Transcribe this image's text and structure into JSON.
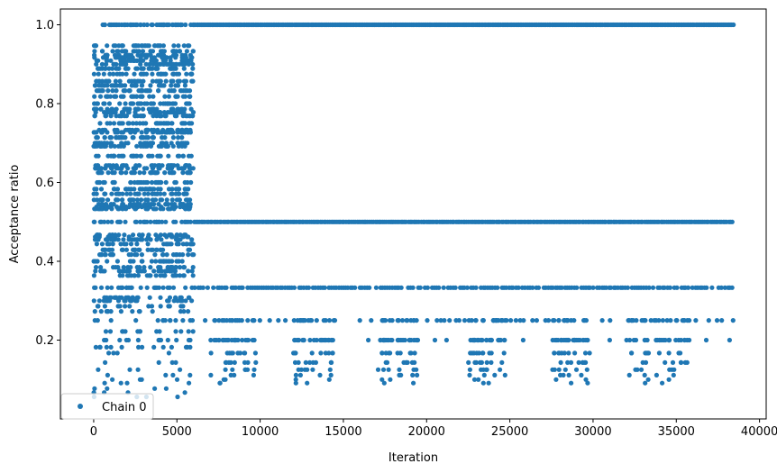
{
  "chart_data": {
    "type": "scatter",
    "xlabel": "Iteration",
    "ylabel": "Acceptance ratio",
    "xlim": [
      -2000,
      40400
    ],
    "ylim": [
      0.0,
      1.04
    ],
    "xticks": [
      0,
      5000,
      10000,
      15000,
      20000,
      25000,
      30000,
      35000,
      40000
    ],
    "xtick_labels": [
      "0",
      "5000",
      "10000",
      "15000",
      "20000",
      "25000",
      "30000",
      "35000",
      "40000"
    ],
    "yticks": [
      0.2,
      0.4,
      0.6,
      0.8,
      1.0
    ],
    "ytick_labels": [
      "0.2",
      "0.4",
      "0.6",
      "0.8",
      "1.0"
    ],
    "grid": false,
    "legend_position": "bottom-left",
    "marker_color": "#1f77b4",
    "series": [
      {
        "name": "Chain 0",
        "phases": [
          {
            "x_range": [
              0,
              6000
            ],
            "y_levels": [
              1.0,
              0.947,
              0.933,
              0.923,
              0.917,
              0.909,
              0.9,
              0.889,
              0.875,
              0.857,
              0.846,
              0.833,
              0.818,
              0.8,
              0.786,
              0.778,
              0.769,
              0.75,
              0.733,
              0.727,
              0.714,
              0.7,
              0.692,
              0.667,
              0.643,
              0.636,
              0.625,
              0.6,
              0.583,
              0.571,
              0.556,
              0.545,
              0.538,
              0.533,
              0.5,
              0.467,
              0.462,
              0.455,
              0.444,
              0.429,
              0.417,
              0.4,
              0.385,
              0.375,
              0.364,
              0.333,
              0.308,
              0.3,
              0.286,
              0.273,
              0.25,
              0.222,
              0.2,
              0.182,
              0.167,
              0.143,
              0.125,
              0.111,
              0.1,
              0.091,
              0.077,
              0.067,
              0.056
            ]
          },
          {
            "x_range": [
              6000,
              38400
            ],
            "y_levels": [
              1.0,
              0.5,
              0.333,
              0.25,
              0.2,
              0.167,
              0.143,
              0.125,
              0.111,
              0.1,
              0.091
            ],
            "sparse_clusters": [
              {
                "x_range": [
                  7000,
                  9800
                ]
              },
              {
                "x_range": [
                  12000,
                  14500
                ]
              },
              {
                "x_range": [
                  17000,
                  19500
                ]
              },
              {
                "x_range": [
                  22500,
                  24800
                ]
              },
              {
                "x_range": [
                  27500,
                  29800
                ]
              },
              {
                "x_range": [
                  32000,
                  35800
                ]
              }
            ]
          }
        ]
      }
    ]
  }
}
